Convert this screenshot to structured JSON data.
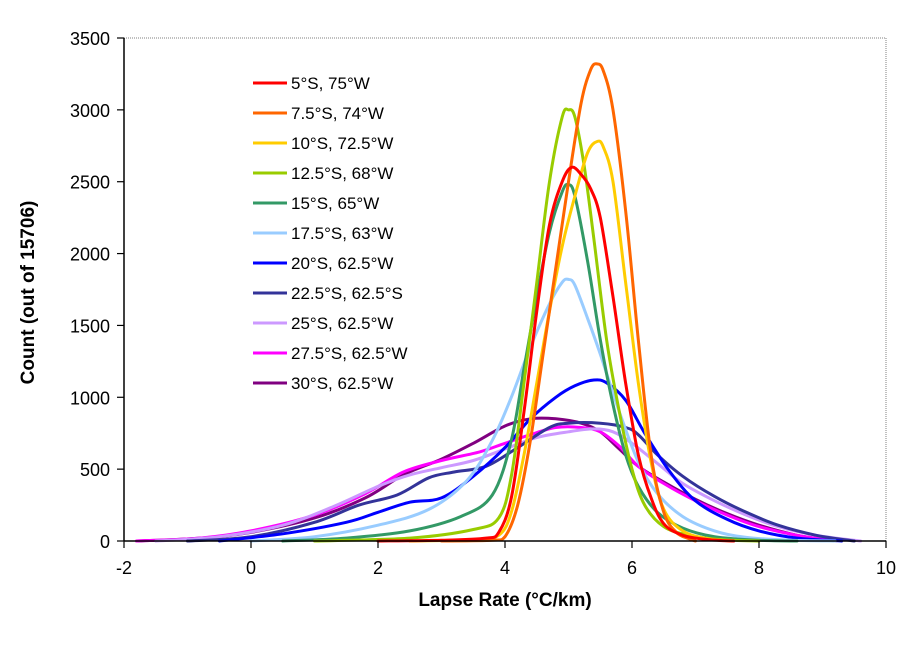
{
  "chart_data": {
    "type": "line",
    "title": "",
    "xlabel": "Lapse Rate (°C/km)",
    "ylabel": "Count (out of 15706)",
    "xlim": [
      -2,
      10
    ],
    "ylim": [
      0,
      3500
    ],
    "xticks": [
      -2,
      0,
      2,
      4,
      6,
      8,
      10
    ],
    "yticks": [
      0,
      500,
      1000,
      1500,
      2000,
      2500,
      3000,
      3500
    ],
    "grid": false,
    "legend_position": "top-left",
    "series": [
      {
        "name": "5°S, 75°W",
        "color": "#ff0000",
        "x": [
          2.0,
          3.0,
          3.7,
          3.9,
          4.1,
          4.3,
          4.5,
          4.7,
          4.9,
          5.05,
          5.2,
          5.35,
          5.5,
          5.7,
          5.9,
          6.1,
          6.3,
          6.5,
          6.8,
          7.2,
          7.6
        ],
        "y": [
          0,
          5,
          20,
          60,
          300,
          900,
          1600,
          2200,
          2500,
          2600,
          2550,
          2450,
          2250,
          1700,
          1100,
          600,
          300,
          120,
          40,
          10,
          0
        ]
      },
      {
        "name": "7.5°S, 74°W",
        "color": "#ff6600",
        "x": [
          3.0,
          3.8,
          4.0,
          4.2,
          4.4,
          4.6,
          4.8,
          5.0,
          5.2,
          5.35,
          5.45,
          5.55,
          5.7,
          5.9,
          6.1,
          6.3,
          6.5,
          6.7,
          6.9,
          7.0
        ],
        "y": [
          0,
          5,
          30,
          250,
          700,
          1300,
          1900,
          2500,
          3050,
          3280,
          3320,
          3270,
          3000,
          2300,
          1400,
          600,
          200,
          60,
          15,
          0
        ]
      },
      {
        "name": "10°S, 72.5°W",
        "color": "#ffcc00",
        "x": [
          2.5,
          3.5,
          3.9,
          4.1,
          4.3,
          4.5,
          4.7,
          4.9,
          5.1,
          5.3,
          5.45,
          5.55,
          5.7,
          5.9,
          6.1,
          6.3,
          6.5,
          6.8,
          7.2,
          7.6
        ],
        "y": [
          0,
          10,
          40,
          200,
          600,
          1100,
          1600,
          2050,
          2400,
          2700,
          2780,
          2740,
          2500,
          1800,
          1100,
          550,
          220,
          70,
          15,
          0
        ]
      },
      {
        "name": "12.5°S, 68°W",
        "color": "#99cc00",
        "x": [
          1.0,
          2.5,
          3.5,
          3.9,
          4.1,
          4.3,
          4.5,
          4.7,
          4.9,
          5.0,
          5.1,
          5.25,
          5.4,
          5.6,
          5.8,
          6.0,
          6.2,
          6.5,
          6.9,
          7.4,
          8.0
        ],
        "y": [
          0,
          20,
          80,
          160,
          450,
          1100,
          1800,
          2500,
          2950,
          3000,
          2950,
          2600,
          2100,
          1400,
          900,
          500,
          250,
          100,
          40,
          10,
          0
        ]
      },
      {
        "name": "15°S, 65°W",
        "color": "#339966",
        "x": [
          0.5,
          1.5,
          2.5,
          3.3,
          3.8,
          4.1,
          4.3,
          4.5,
          4.7,
          4.9,
          5.0,
          5.1,
          5.3,
          5.5,
          5.7,
          5.9,
          6.1,
          6.4,
          6.8,
          7.3,
          8.0,
          8.6
        ],
        "y": [
          0,
          20,
          70,
          170,
          320,
          700,
          1200,
          1700,
          2150,
          2430,
          2480,
          2400,
          1950,
          1400,
          950,
          600,
          380,
          200,
          90,
          30,
          5,
          0
        ]
      },
      {
        "name": "17.5°S, 63°W",
        "color": "#99ccff",
        "x": [
          0.0,
          1.0,
          2.0,
          2.8,
          3.4,
          3.8,
          4.1,
          4.4,
          4.7,
          4.9,
          5.0,
          5.1,
          5.3,
          5.5,
          5.8,
          6.1,
          6.4,
          6.8,
          7.3,
          7.8,
          8.5,
          9.2
        ],
        "y": [
          0,
          30,
          110,
          220,
          420,
          700,
          1000,
          1350,
          1650,
          1800,
          1820,
          1780,
          1550,
          1300,
          900,
          550,
          330,
          170,
          70,
          25,
          5,
          0
        ]
      },
      {
        "name": "20°S, 62.5°W",
        "color": "#0000ff",
        "x": [
          -0.5,
          0.5,
          1.5,
          2.0,
          2.5,
          3.0,
          3.5,
          4.0,
          4.4,
          4.8,
          5.1,
          5.4,
          5.6,
          5.9,
          6.2,
          6.6,
          7.0,
          7.5,
          8.0,
          8.6,
          9.3
        ],
        "y": [
          0,
          50,
          130,
          200,
          270,
          300,
          450,
          650,
          850,
          1000,
          1080,
          1120,
          1100,
          980,
          750,
          480,
          280,
          150,
          70,
          20,
          0
        ]
      },
      {
        "name": "22.5°S, 62.5°S",
        "color": "#333399",
        "x": [
          -1.0,
          0.0,
          1.0,
          1.7,
          2.3,
          2.8,
          3.2,
          3.7,
          4.2,
          4.7,
          5.0,
          5.5,
          5.9,
          6.1,
          6.4,
          6.8,
          7.3,
          7.8,
          8.3,
          8.9,
          9.5
        ],
        "y": [
          0,
          30,
          130,
          250,
          320,
          440,
          480,
          520,
          650,
          790,
          820,
          820,
          790,
          740,
          600,
          450,
          310,
          200,
          110,
          40,
          0
        ]
      },
      {
        "name": "25°S, 62.5°W",
        "color": "#cc99ff",
        "x": [
          -1.5,
          -0.5,
          0.5,
          1.3,
          2.0,
          2.5,
          3.0,
          3.5,
          4.0,
          4.5,
          5.0,
          5.4,
          5.7,
          6.0,
          6.4,
          6.8,
          7.3,
          7.8,
          8.3,
          8.9,
          9.6
        ],
        "y": [
          0,
          30,
          110,
          240,
          380,
          460,
          510,
          560,
          640,
          720,
          760,
          780,
          760,
          680,
          540,
          400,
          280,
          180,
          100,
          40,
          0
        ]
      },
      {
        "name": "27.5°S, 62.5°W",
        "color": "#ff00ff",
        "x": [
          -1.8,
          -0.8,
          0.0,
          1.0,
          1.8,
          2.4,
          3.0,
          3.6,
          4.0,
          4.4,
          4.8,
          5.2,
          5.5,
          5.8,
          6.1,
          6.5,
          7.0,
          7.5,
          8.0,
          8.6,
          9.2
        ],
        "y": [
          0,
          20,
          70,
          180,
          330,
          480,
          560,
          620,
          680,
          740,
          790,
          790,
          760,
          660,
          520,
          400,
          280,
          180,
          100,
          40,
          0
        ]
      },
      {
        "name": "30°S, 62.5°W",
        "color": "#800080",
        "x": [
          -1.8,
          -0.8,
          0.0,
          1.0,
          1.8,
          2.4,
          3.0,
          3.5,
          4.0,
          4.4,
          4.8,
          5.2,
          5.5,
          5.8,
          6.1,
          6.5,
          7.0,
          7.5,
          8.0,
          8.6,
          9.2
        ],
        "y": [
          0,
          20,
          60,
          160,
          300,
          460,
          570,
          680,
          800,
          850,
          850,
          820,
          760,
          640,
          520,
          410,
          290,
          190,
          110,
          40,
          0
        ]
      }
    ]
  }
}
